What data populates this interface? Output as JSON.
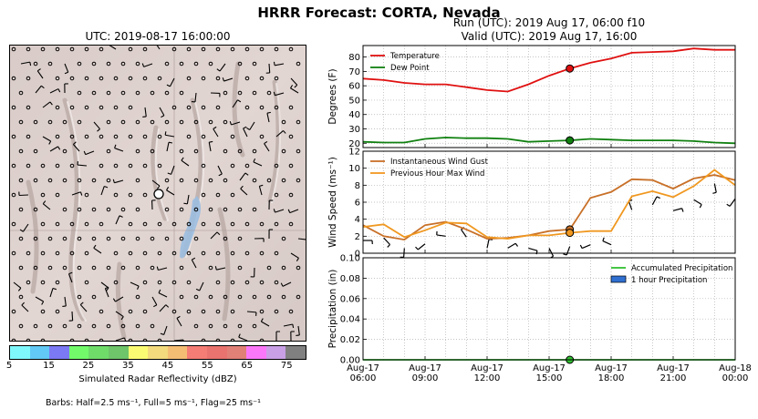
{
  "title": "HRRR Forecast: CORTA, Nevada",
  "map": {
    "title": "UTC: 2019-08-17 16:00:00",
    "colorbar": {
      "label": "Simulated Radar Reflectivity (dBZ)",
      "ticks": [
        "5",
        "15",
        "25",
        "35",
        "45",
        "55",
        "65",
        "75"
      ],
      "colors": [
        "#7ff8fb",
        "#62c8f5",
        "#7c79f4",
        "#72fa6b",
        "#6fdc6a",
        "#6fc56a",
        "#fbfb73",
        "#f3da7d",
        "#f4bd74",
        "#f47d75",
        "#e9736f",
        "#e18077",
        "#fb77f9",
        "#c9a0e6",
        "#808080"
      ]
    },
    "barb_note": "Barbs: Half=2.5 ms⁻¹, Full=5 ms⁻¹, Flag=25 ms⁻¹"
  },
  "run": {
    "line1": "Run (UTC): 2019 Aug 17, 06:00 f10",
    "line2": "Valid (UTC): 2019 Aug 17, 16:00"
  },
  "chart_data": [
    {
      "type": "line",
      "ylabel": "Degrees (F)",
      "ylim": [
        17,
        88
      ],
      "yticks": [
        20,
        30,
        40,
        50,
        60,
        70,
        80
      ],
      "grid": true,
      "legend_position": "top-left",
      "x": [
        6,
        7,
        8,
        9,
        10,
        11,
        12,
        13,
        14,
        15,
        16,
        17,
        18,
        19,
        20,
        21,
        22,
        23,
        24
      ],
      "series": [
        {
          "name": "Temperature",
          "color": "#e01010",
          "values": [
            65,
            64,
            62,
            61,
            61,
            59,
            57,
            56,
            61,
            67,
            72,
            76,
            79,
            83,
            83.5,
            84,
            86,
            85,
            85
          ]
        },
        {
          "name": "Dew Point",
          "color": "#108010",
          "values": [
            21,
            20.5,
            20.5,
            23,
            24,
            23.5,
            23.5,
            23,
            21,
            21.5,
            22,
            23,
            22.5,
            22,
            22,
            22,
            21.5,
            20.5,
            20
          ]
        }
      ],
      "marker_x": 16
    },
    {
      "type": "line",
      "ylabel": "Wind Speed (ms⁻¹)",
      "ylim": [
        0,
        12
      ],
      "yticks": [
        0,
        2,
        4,
        6,
        8,
        10,
        12
      ],
      "grid": true,
      "legend_position": "top-left",
      "x": [
        6,
        7,
        8,
        9,
        10,
        11,
        12,
        13,
        14,
        15,
        16,
        17,
        18,
        19,
        20,
        21,
        22,
        23,
        24
      ],
      "series": [
        {
          "name": "Instantaneous Wind Gust",
          "color": "#c87028",
          "values": [
            3.3,
            2.0,
            1.6,
            3.3,
            3.7,
            2.8,
            1.7,
            1.8,
            2.1,
            2.6,
            2.8,
            6.5,
            7.2,
            8.7,
            8.6,
            7.6,
            8.8,
            9.2,
            8.6
          ]
        },
        {
          "name": "Previous Hour Max Wind",
          "color": "#f09820",
          "values": [
            3.1,
            3.4,
            1.9,
            2.7,
            3.6,
            3.5,
            1.9,
            1.7,
            2.1,
            2.1,
            2.4,
            2.6,
            2.6,
            6.7,
            7.3,
            6.6,
            7.9,
            9.8,
            8.0
          ]
        }
      ],
      "marker_x": 16
    },
    {
      "type": "line",
      "ylabel": "Precipitation (in)",
      "ylim": [
        0,
        0.1
      ],
      "yticks": [
        0.0,
        0.02,
        0.04,
        0.06,
        0.08,
        0.1
      ],
      "ytick_labels": [
        "0.00",
        "0.02",
        "0.04",
        "0.06",
        "0.08",
        "0.10"
      ],
      "grid": true,
      "legend_position": "top-right",
      "x": [
        6,
        7,
        8,
        9,
        10,
        11,
        12,
        13,
        14,
        15,
        16,
        17,
        18,
        19,
        20,
        21,
        22,
        23,
        24
      ],
      "series": [
        {
          "name": "Accumulated Precipitation",
          "color": "#30c030",
          "values": [
            0,
            0,
            0,
            0,
            0,
            0,
            0,
            0,
            0,
            0,
            0,
            0,
            0,
            0,
            0,
            0,
            0,
            0,
            0
          ]
        },
        {
          "name": "1 hour Precipitation",
          "color": "#2f6fd0",
          "kind": "bar",
          "values": [
            0,
            0,
            0,
            0,
            0,
            0,
            0,
            0,
            0,
            0,
            0,
            0,
            0,
            0,
            0,
            0,
            0,
            0,
            0
          ]
        }
      ],
      "marker_x": 16,
      "xticks": [
        6,
        9,
        12,
        15,
        18,
        21,
        24
      ],
      "xtick_labels": [
        [
          "Aug-17",
          "06:00"
        ],
        [
          "Aug-17",
          "09:00"
        ],
        [
          "Aug-17",
          "12:00"
        ],
        [
          "Aug-17",
          "15:00"
        ],
        [
          "Aug-17",
          "18:00"
        ],
        [
          "Aug-17",
          "21:00"
        ],
        [
          "Aug-18",
          "00:00"
        ]
      ]
    }
  ]
}
